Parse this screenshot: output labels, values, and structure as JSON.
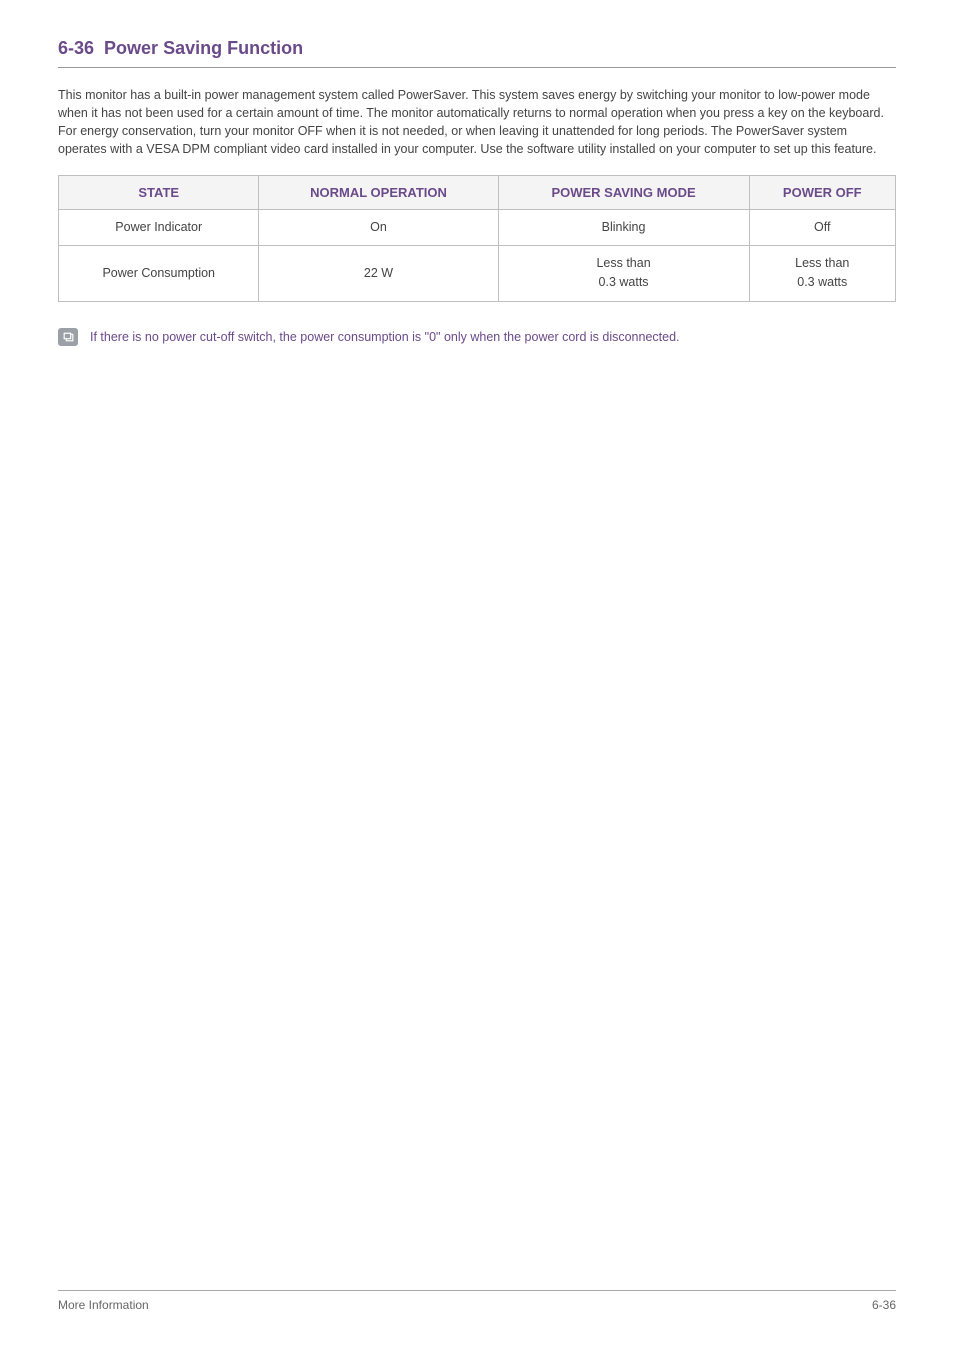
{
  "section": {
    "number": "6-36",
    "title": "Power Saving Function"
  },
  "paragraph": "This monitor has a built-in power management system called PowerSaver. This system saves energy by switching your monitor to low-power mode when it has not been used for a certain amount of time. The monitor automatically returns to normal operation when you press a key on the keyboard. For energy conservation, turn your monitor OFF when it is not needed, or when leaving it unattended for long periods. The PowerSaver system operates with a VESA DPM compliant video card installed in your computer. Use the software utility installed on your computer to set up this feature.",
  "table": {
    "headers": [
      "STATE",
      "NORMAL OPERATION",
      "POWER SAVING MODE",
      "POWER OFF"
    ],
    "rows": [
      {
        "label": "Power Indicator",
        "normal": "On",
        "saving": "Blinking",
        "off": "Off"
      },
      {
        "label": "Power Consumption",
        "normal": "22 W",
        "saving": "Less than\n0.3 watts",
        "off": "Less than\n0.3 watts"
      }
    ]
  },
  "note": "If there is no power cut-off switch, the power consumption is \"0\" only when the power cord is disconnected.",
  "footer": {
    "left": "More Information",
    "right": "6-36"
  },
  "colors": {
    "accent": "#6b4a8a",
    "header_bg": "#f4f4f4",
    "border": "#bfbfbf",
    "text": "#444444",
    "footer_text": "#666666",
    "icon_bg": "#9aa0a6"
  }
}
